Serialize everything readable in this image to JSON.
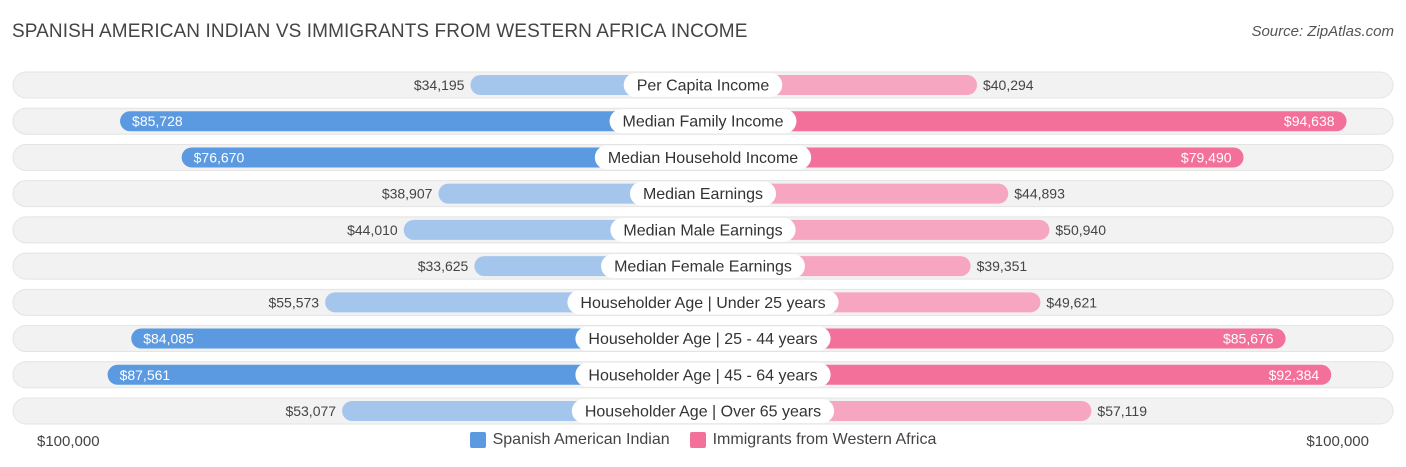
{
  "title": "SPANISH AMERICAN INDIAN VS IMMIGRANTS FROM WESTERN AFRICA INCOME",
  "source": "Source: ZipAtlas.com",
  "axis": {
    "min_label": "$100,000",
    "max_label": "$100,000"
  },
  "colors": {
    "left_strong": "#5b9ae0",
    "left_light": "#a5c6ec",
    "right_strong": "#f2709a",
    "right_light": "#f6a6c0",
    "track": "#f2f2f2"
  },
  "chart_data": {
    "type": "bar",
    "orientation": "horizontal-diverging",
    "xlim": [
      0,
      100000
    ],
    "categories": [
      "Per Capita Income",
      "Median Family Income",
      "Median Household Income",
      "Median Earnings",
      "Median Male Earnings",
      "Median Female Earnings",
      "Householder Age | Under 25 years",
      "Householder Age | 25 - 44 years",
      "Householder Age | 45 - 64 years",
      "Householder Age | Over 65 years"
    ],
    "series": [
      {
        "name": "Spanish American Indian",
        "side": "left",
        "values": [
          34195,
          85728,
          76670,
          38907,
          44010,
          33625,
          55573,
          84085,
          87561,
          53077
        ],
        "labels": [
          "$34,195",
          "$85,728",
          "$76,670",
          "$38,907",
          "$44,010",
          "$33,625",
          "$55,573",
          "$84,085",
          "$87,561",
          "$53,077"
        ]
      },
      {
        "name": "Immigrants from Western Africa",
        "side": "right",
        "values": [
          40294,
          94638,
          79490,
          44893,
          50940,
          39351,
          49621,
          85676,
          92384,
          57119
        ],
        "labels": [
          "$40,294",
          "$94,638",
          "$79,490",
          "$44,893",
          "$50,940",
          "$39,351",
          "$49,621",
          "$85,676",
          "$92,384",
          "$57,119"
        ]
      }
    ],
    "legend_position": "bottom-center"
  }
}
